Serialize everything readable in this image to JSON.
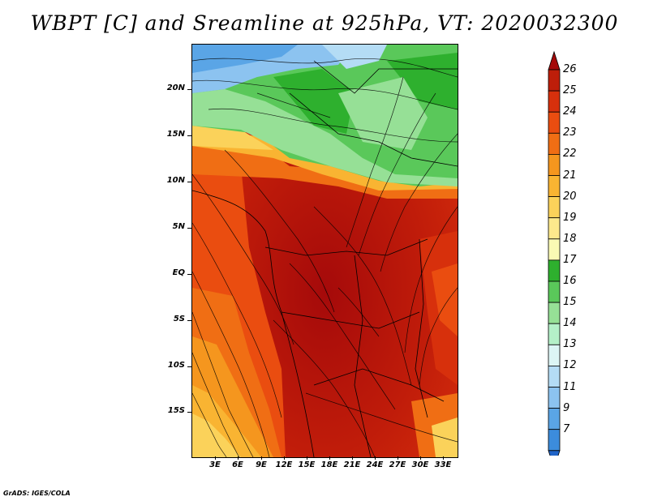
{
  "title": "WBPT [C] and Sreamline at 925hPa, VT: 2020032300",
  "footer": "GrADS: IGES/COLA",
  "lat_labels": [
    "20N",
    "15N",
    "10N",
    "5N",
    "EQ",
    "5S",
    "10S",
    "15S"
  ],
  "lon_labels": [
    "3E",
    "6E",
    "9E",
    "12E",
    "15E",
    "18E",
    "21E",
    "24E",
    "27E",
    "30E",
    "33E"
  ],
  "colorbar": {
    "levels": [
      "26",
      "25",
      "24",
      "23",
      "22",
      "21",
      "20",
      "19",
      "18",
      "17",
      "16",
      "15",
      "14",
      "13",
      "12",
      "11",
      "9",
      "7"
    ],
    "colors": [
      "#a50a0a",
      "#be1e0a",
      "#d7300c",
      "#ea4d10",
      "#f06e14",
      "#f5961e",
      "#f9b432",
      "#fbd25a",
      "#fde98c",
      "#fafab4",
      "#2eb02e",
      "#5ac85a",
      "#96e096",
      "#b4f0c8",
      "#dcf5f5",
      "#b4dcf5",
      "#8cc3f0",
      "#5aa5e6",
      "#3c8cdc",
      "#2064c8"
    ]
  },
  "map": {
    "variable": "WBPT [C]",
    "level": "925hPa",
    "valid_time": "2020032300"
  }
}
